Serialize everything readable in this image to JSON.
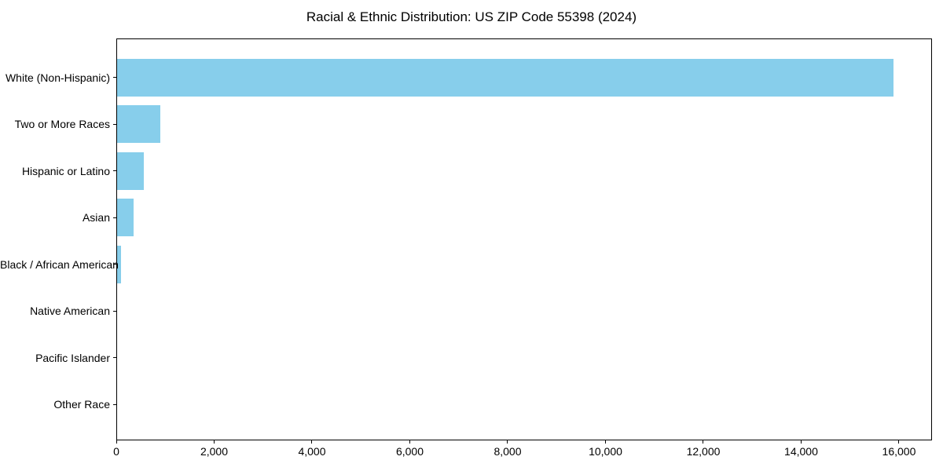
{
  "title": "Racial & Ethnic Distribution: US ZIP Code 55398 (2024)",
  "colors": {
    "bar": "#87CEEB",
    "axis": "#000000",
    "text": "#000000",
    "background": "#FFFFFF"
  },
  "chart_data": {
    "type": "bar",
    "orientation": "horizontal",
    "title": "Racial & Ethnic Distribution: US ZIP Code 55398 (2024)",
    "categories": [
      "White (Non-Hispanic)",
      "Two or More Races",
      "Hispanic or Latino",
      "Asian",
      "Black / African American",
      "Native American",
      "Pacific Islander",
      "Other Race"
    ],
    "values": [
      15870,
      885,
      545,
      345,
      85,
      0,
      0,
      0
    ],
    "xlabel": "",
    "ylabel": "",
    "xlim": [
      0,
      16675
    ],
    "xticks": [
      0,
      2000,
      4000,
      6000,
      8000,
      10000,
      12000,
      14000,
      16000
    ],
    "xtick_labels": [
      "0",
      "2,000",
      "4,000",
      "6,000",
      "8,000",
      "10,000",
      "12,000",
      "14,000",
      "16,000"
    ],
    "grid": false,
    "legend": null,
    "bar_color": "#87CEEB"
  }
}
